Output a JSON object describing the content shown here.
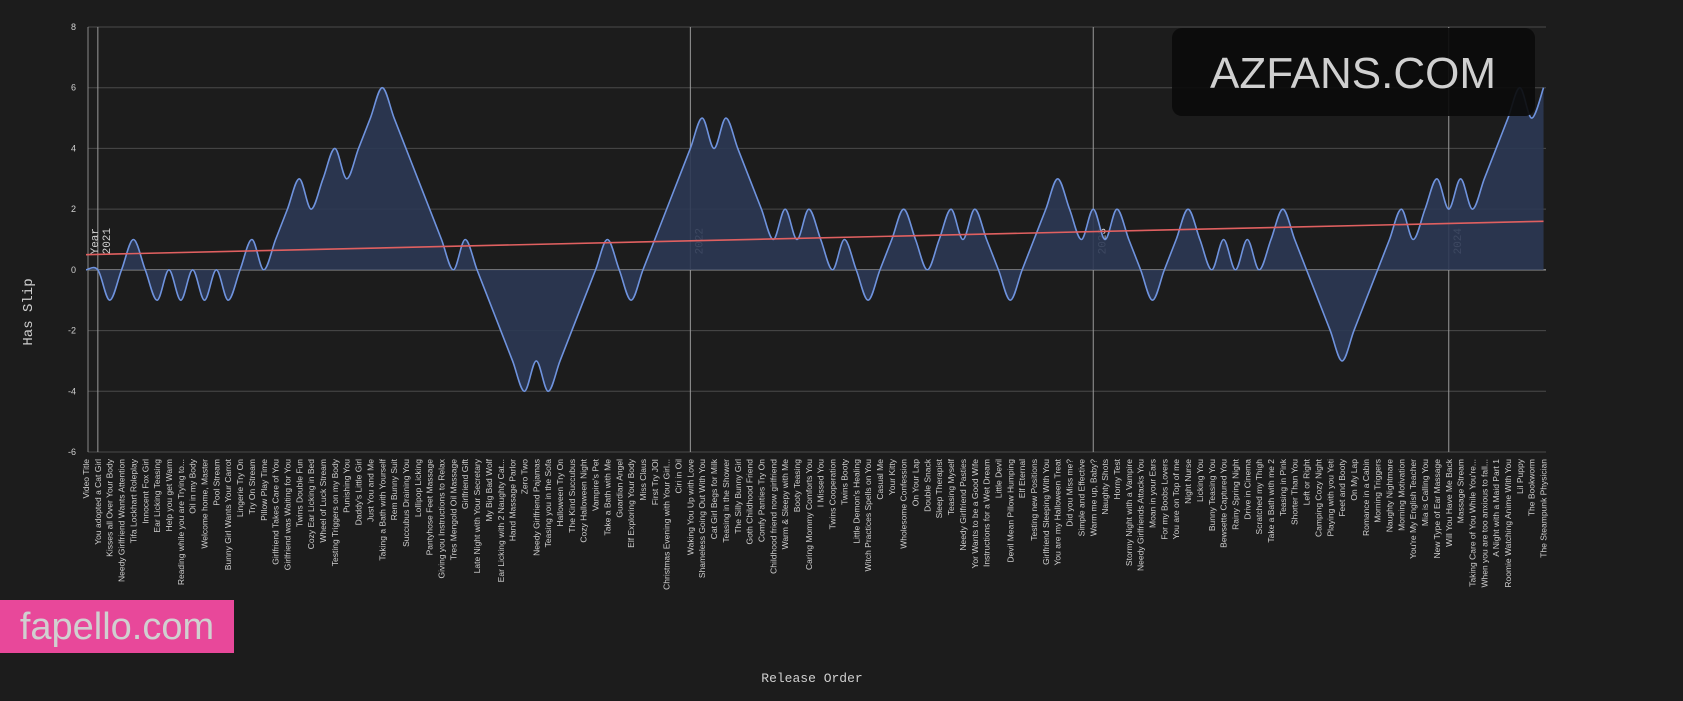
{
  "chart_data": {
    "type": "area",
    "xlabel": "Release Order",
    "ylabel": "Has Slip",
    "categories": [
      "Video Title",
      "You adopted a Cat Girl",
      "Kisses all Over Your Body",
      "Needy Girlfriend Wants Attention",
      "Tifa Lockhart Roleplay",
      "Innocent Fox Girl",
      "Ear Licking Teasing",
      "Help you get Warm",
      "Reading while you are Trying to...",
      "Oil in my Body",
      "Welcome home, Master",
      "Pool Stream",
      "Bunny Girl Wants Your Carrot",
      "Lingerie Try On",
      "Try On Stream",
      "Pillow Play Time",
      "Girlfriend Takes Care of You",
      "Girlfriend was Waiting for You",
      "Twins Double Fun",
      "Cozy Ear Licking in Bed",
      "Wheel of Luck Stream",
      "Testing Triggers on my Body",
      "Punishing You",
      "Daddy's Little Girl",
      "Just You and Me",
      "Taking a Bath with Yourself",
      "Rem Bunny Suit",
      "Succubus Draining You",
      "Lollipop Licking",
      "Pantyhose Feet Massage",
      "Giving you Instructions to Relax",
      "Tres Mengold Oil Massage",
      "Girlfriend Gift",
      "Late Night with Your Secretary",
      "My Big Bad Wolf",
      "Ear Licking with 2 Naughty Cat...",
      "Hand Massage Parlor",
      "Zero Two",
      "Needy Girlfriend Pajamas",
      "Teasing you in the Sofa",
      "Halloween Try On",
      "The Kind Succubus",
      "Cozy Halloween Night",
      "Vampire's Pet",
      "Take a Bath with Me",
      "Guardian Angel",
      "Elf Exploring Your Body",
      "Miss Claus",
      "First Try JOI",
      "Christmas Evening with Your Girl...",
      "Ciri in Oil",
      "Waking You Up with Love",
      "Shameless Going Out With You",
      "Cat Girl Begs for Milk",
      "Teasing in the Shower",
      "The Silly Bunny Girl",
      "Goth Childhood Friend",
      "Comfy Panties Try On",
      "Childhood friend now girlfriend",
      "Warm & Sleepy with Me",
      "Booty Teasing",
      "Caring Mommy Comforts You",
      "I Missed You",
      "Twins Cooperation",
      "Twins Booty",
      "Little Demon's Healing",
      "Witch Practices Spells on You",
      "Casual Me",
      "Your Kitty",
      "Wholesome Confession",
      "On Your Lap",
      "Double Snack",
      "Sleep Therapist",
      "Teasing Myself",
      "Needy Girlfriend Pasties",
      "Yor Wants to be a Good Wife",
      "Instructions for a Wet Dream",
      "Little Devil",
      "Devil Mean Pillow Humping",
      "Elf Eternal",
      "Testing new Positions",
      "Girlfriend Sleeping With You",
      "You are my Halloween Treat",
      "Did you Miss me?",
      "Simple and Effective",
      "Warm me up, Baby?",
      "Naughty Shots",
      "Horny Test",
      "Stormy Night with a Vampire",
      "Needy Girlfriends Attacks You",
      "Moan in your Ears",
      "For my Boobs Lovers",
      "You are on Top of me",
      "Night Nurse",
      "Licking You",
      "Bunny Teasing You",
      "Bewsette Captured You",
      "Rainy Spring Night",
      "Drive in Cinema",
      "Scratched my Thigh",
      "Take a Bath with me 2",
      "Teasing in Pink",
      "Shorter Than You",
      "Left or Right",
      "Camping Cozy Night",
      "Playing with you Yeti",
      "Feet and Booty",
      "On My Lap",
      "Romance in a Cabin",
      "Morning Triggers",
      "Naughty Nightmare",
      "Morning Motivation",
      "You're My English Teacher",
      "Mia is Calling You",
      "New Type of Ear Massage",
      "Will You Have Me Back",
      "Massage Stream",
      "Taking Care of You While You're...",
      "When you are too anxious to fall...",
      "A Night with a Maid Part 1",
      "Roomie Watching Anime With You",
      "Lil Puppy",
      "The Bookworm",
      "The Steampunk Physician"
    ],
    "values": [
      0,
      0,
      -1,
      0,
      1,
      0,
      -1,
      0,
      -1,
      0,
      -1,
      0,
      -1,
      0,
      1,
      0,
      1,
      2,
      3,
      2,
      3,
      4,
      3,
      4,
      5,
      6,
      5,
      4,
      3,
      2,
      1,
      0,
      1,
      0,
      -1,
      -2,
      -3,
      -4,
      -3,
      -4,
      -3,
      -2,
      -1,
      0,
      1,
      0,
      -1,
      0,
      1,
      2,
      3,
      4,
      5,
      4,
      5,
      4,
      3,
      2,
      1,
      2,
      1,
      2,
      1,
      0,
      1,
      0,
      -1,
      0,
      1,
      2,
      1,
      0,
      1,
      2,
      1,
      2,
      1,
      0,
      -1,
      0,
      1,
      2,
      3,
      2,
      1,
      2,
      1,
      2,
      1,
      0,
      -1,
      0,
      1,
      2,
      1,
      0,
      1,
      0,
      1,
      0,
      1,
      2,
      1,
      0,
      -1,
      -2,
      -3,
      -2,
      -1,
      0,
      1,
      2,
      1,
      2,
      3,
      2,
      3,
      2,
      3,
      4,
      5,
      6,
      5,
      6
    ],
    "color": "#6f93de",
    "fill": "#2c3954",
    "trendline": [
      0.5,
      1.6
    ],
    "trend_color": "#e06060",
    "ylim": [
      -6,
      8
    ],
    "yticks": [
      -6,
      -4,
      -2,
      0,
      2,
      4,
      6,
      8
    ],
    "grid": true,
    "year_title": "Year",
    "year_markers": [
      {
        "label": "2021",
        "index": 1
      },
      {
        "label": "2022",
        "index": 51
      },
      {
        "label": "2023",
        "index": 85
      },
      {
        "label": "2024",
        "index": 115
      }
    ],
    "watermarks": [
      "AZFANS.COM",
      "fapello.com"
    ]
  }
}
